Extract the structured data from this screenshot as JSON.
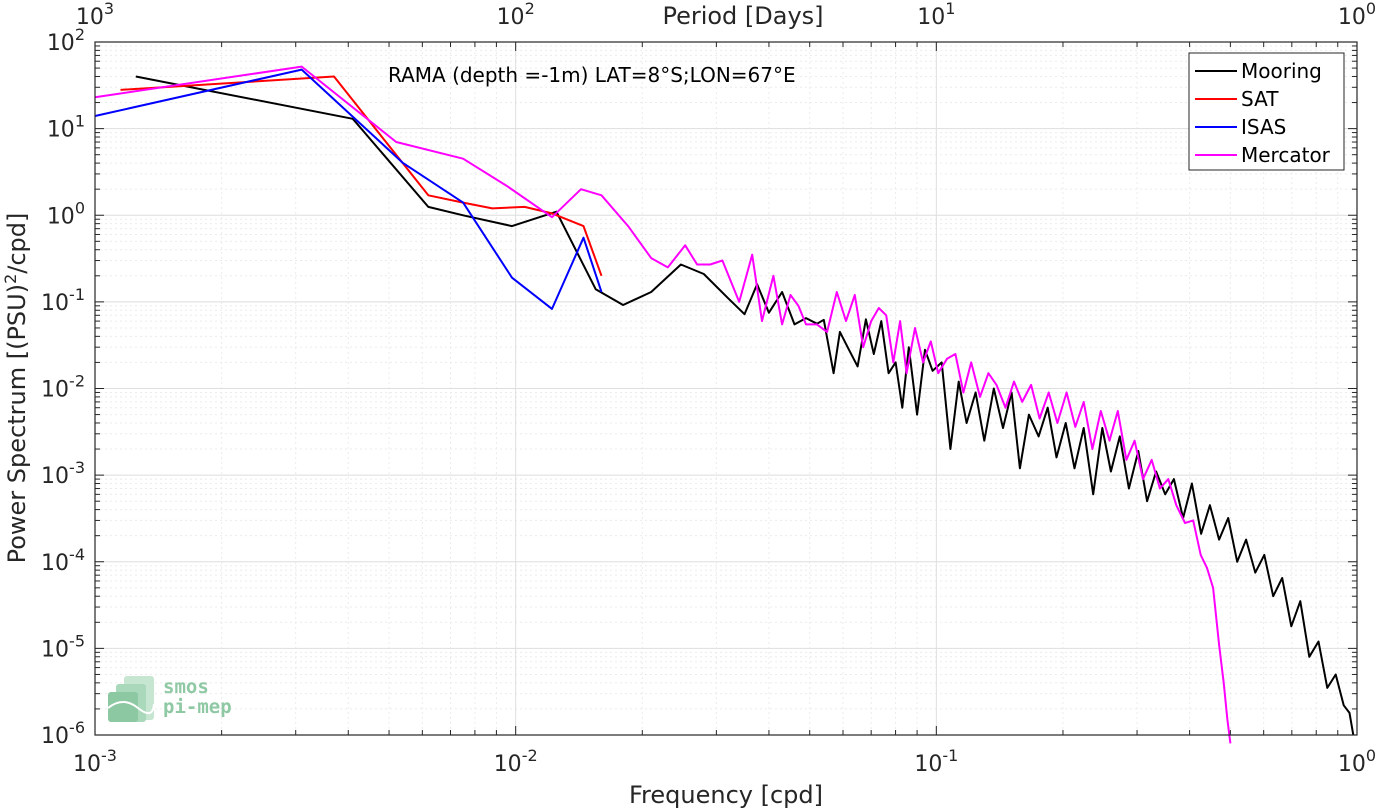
{
  "chart_data": {
    "type": "line",
    "title": "RAMA (depth =-1m) LAT=8°S;LON=67°E",
    "xlabel": "Frequency [cpd]",
    "ylabel": "Power Spectrum [(PSU)",
    "ylabel_sup": "2",
    "ylabel_tail": "/cpd]",
    "top_xlabel": "Period [Days]",
    "xscale": "log",
    "yscale": "log",
    "xlim": [
      0.001,
      1
    ],
    "ylim": [
      1e-06,
      100
    ],
    "grid": true,
    "legend_position": "top-right",
    "x_ticks": [
      {
        "value": 0.001,
        "base": "10",
        "exp": "-3"
      },
      {
        "value": 0.01,
        "base": "10",
        "exp": "-2"
      },
      {
        "value": 0.1,
        "base": "10",
        "exp": "-1"
      },
      {
        "value": 1,
        "base": "10",
        "exp": "0"
      }
    ],
    "top_ticks": [
      {
        "value": 0.001,
        "base": "10",
        "exp": "3"
      },
      {
        "value": 0.01,
        "base": "10",
        "exp": "2"
      },
      {
        "value": 0.1,
        "base": "10",
        "exp": "1"
      },
      {
        "value": 1,
        "base": "10",
        "exp": "0"
      }
    ],
    "y_ticks": [
      {
        "value": 100,
        "base": "10",
        "exp": "2"
      },
      {
        "value": 10,
        "base": "10",
        "exp": "1"
      },
      {
        "value": 1,
        "base": "10",
        "exp": "0"
      },
      {
        "value": 0.1,
        "base": "10",
        "exp": "-1"
      },
      {
        "value": 0.01,
        "base": "10",
        "exp": "-2"
      },
      {
        "value": 0.001,
        "base": "10",
        "exp": "-3"
      },
      {
        "value": 0.0001,
        "base": "10",
        "exp": "-4"
      },
      {
        "value": 1e-05,
        "base": "10",
        "exp": "-5"
      },
      {
        "value": 1e-06,
        "base": "10",
        "exp": "-6"
      }
    ],
    "series": [
      {
        "name": "Mooring",
        "color": "#000000",
        "x": [
          0.00125,
          0.0041,
          0.0062,
          0.0075,
          0.0098,
          0.0125,
          0.0155,
          0.018,
          0.021,
          0.0247,
          0.028,
          0.032,
          0.035,
          0.0375,
          0.04,
          0.043,
          0.046,
          0.049,
          0.052,
          0.054,
          0.057,
          0.059,
          0.062,
          0.065,
          0.068,
          0.071,
          0.074,
          0.077,
          0.08,
          0.083,
          0.086,
          0.09,
          0.094,
          0.098,
          0.103,
          0.108,
          0.113,
          0.118,
          0.124,
          0.13,
          0.137,
          0.144,
          0.151,
          0.158,
          0.166,
          0.175,
          0.184,
          0.193,
          0.203,
          0.213,
          0.224,
          0.236,
          0.248,
          0.26,
          0.273,
          0.287,
          0.302,
          0.317,
          0.333,
          0.35,
          0.367,
          0.386,
          0.405,
          0.426,
          0.447,
          0.47,
          0.494,
          0.519,
          0.545,
          0.573,
          0.602,
          0.632,
          0.664,
          0.698,
          0.733,
          0.77,
          0.81,
          0.85,
          0.89,
          0.93,
          0.96,
          0.98
        ],
        "y": [
          40,
          13,
          1.25,
          1.0,
          0.75,
          1.1,
          0.14,
          0.092,
          0.13,
          0.27,
          0.21,
          0.11,
          0.072,
          0.16,
          0.075,
          0.13,
          0.055,
          0.065,
          0.056,
          0.062,
          0.015,
          0.045,
          0.028,
          0.018,
          0.063,
          0.025,
          0.06,
          0.015,
          0.02,
          0.006,
          0.03,
          0.005,
          0.028,
          0.016,
          0.02,
          0.002,
          0.012,
          0.004,
          0.009,
          0.0025,
          0.01,
          0.0035,
          0.009,
          0.0012,
          0.005,
          0.0028,
          0.006,
          0.0016,
          0.004,
          0.0012,
          0.0035,
          0.0006,
          0.0035,
          0.0011,
          0.0028,
          0.0007,
          0.0019,
          0.0005,
          0.0011,
          0.0006,
          0.0009,
          0.00032,
          0.0008,
          0.00021,
          0.00045,
          0.00018,
          0.00032,
          0.0001,
          0.00018,
          7.5e-05,
          0.00012,
          4e-05,
          6.5e-05,
          1.8e-05,
          3.5e-05,
          8e-06,
          1.2e-05,
          3.5e-06,
          5e-06,
          2.2e-06,
          1.8e-06,
          1e-06
        ]
      },
      {
        "name": "SAT",
        "color": "#ff0000",
        "x": [
          0.00115,
          0.0037,
          0.0062,
          0.0075,
          0.0088,
          0.0105,
          0.0122,
          0.0145,
          0.016
        ],
        "y": [
          28,
          40,
          1.7,
          1.4,
          1.2,
          1.25,
          1.05,
          0.75,
          0.2
        ]
      },
      {
        "name": "ISAS",
        "color": "#0000ff",
        "x": [
          0.001,
          0.0031,
          0.0054,
          0.0075,
          0.0098,
          0.0122,
          0.0145,
          0.016
        ],
        "y": [
          14,
          48,
          4.0,
          1.4,
          0.19,
          0.083,
          0.55,
          0.13
        ]
      },
      {
        "name": "Mercator",
        "color": "#ff00ff",
        "x": [
          0.001,
          0.0031,
          0.0052,
          0.0075,
          0.0095,
          0.0122,
          0.0143,
          0.016,
          0.0185,
          0.021,
          0.023,
          0.0253,
          0.027,
          0.029,
          0.031,
          0.034,
          0.0365,
          0.0385,
          0.041,
          0.043,
          0.045,
          0.047,
          0.049,
          0.052,
          0.055,
          0.058,
          0.061,
          0.064,
          0.067,
          0.07,
          0.073,
          0.076,
          0.079,
          0.082,
          0.085,
          0.089,
          0.093,
          0.097,
          0.101,
          0.106,
          0.111,
          0.116,
          0.121,
          0.127,
          0.133,
          0.139,
          0.146,
          0.153,
          0.16,
          0.168,
          0.176,
          0.185,
          0.194,
          0.204,
          0.214,
          0.224,
          0.235,
          0.246,
          0.258,
          0.27,
          0.283,
          0.296,
          0.31,
          0.325,
          0.34,
          0.356,
          0.372,
          0.39,
          0.408,
          0.425,
          0.44,
          0.455,
          0.47,
          0.482,
          0.492,
          0.5
        ],
        "y": [
          23,
          52,
          7,
          4.5,
          2.2,
          0.95,
          2.0,
          1.7,
          0.75,
          0.32,
          0.25,
          0.45,
          0.27,
          0.27,
          0.3,
          0.1,
          0.35,
          0.06,
          0.2,
          0.055,
          0.12,
          0.09,
          0.055,
          0.055,
          0.045,
          0.13,
          0.06,
          0.12,
          0.03,
          0.06,
          0.085,
          0.07,
          0.02,
          0.06,
          0.015,
          0.05,
          0.02,
          0.035,
          0.015,
          0.022,
          0.025,
          0.009,
          0.02,
          0.008,
          0.015,
          0.011,
          0.006,
          0.012,
          0.007,
          0.011,
          0.0045,
          0.009,
          0.004,
          0.009,
          0.0036,
          0.007,
          0.002,
          0.0055,
          0.0025,
          0.0055,
          0.0015,
          0.0025,
          0.0009,
          0.0015,
          0.0007,
          0.0009,
          0.00045,
          0.00028,
          0.0003,
          0.00012,
          8.5e-05,
          5e-05,
          1.1e-05,
          4e-06,
          1.5e-06,
          8e-07
        ]
      }
    ]
  },
  "logo": {
    "line1": "smos",
    "line2": "pi-mep"
  }
}
